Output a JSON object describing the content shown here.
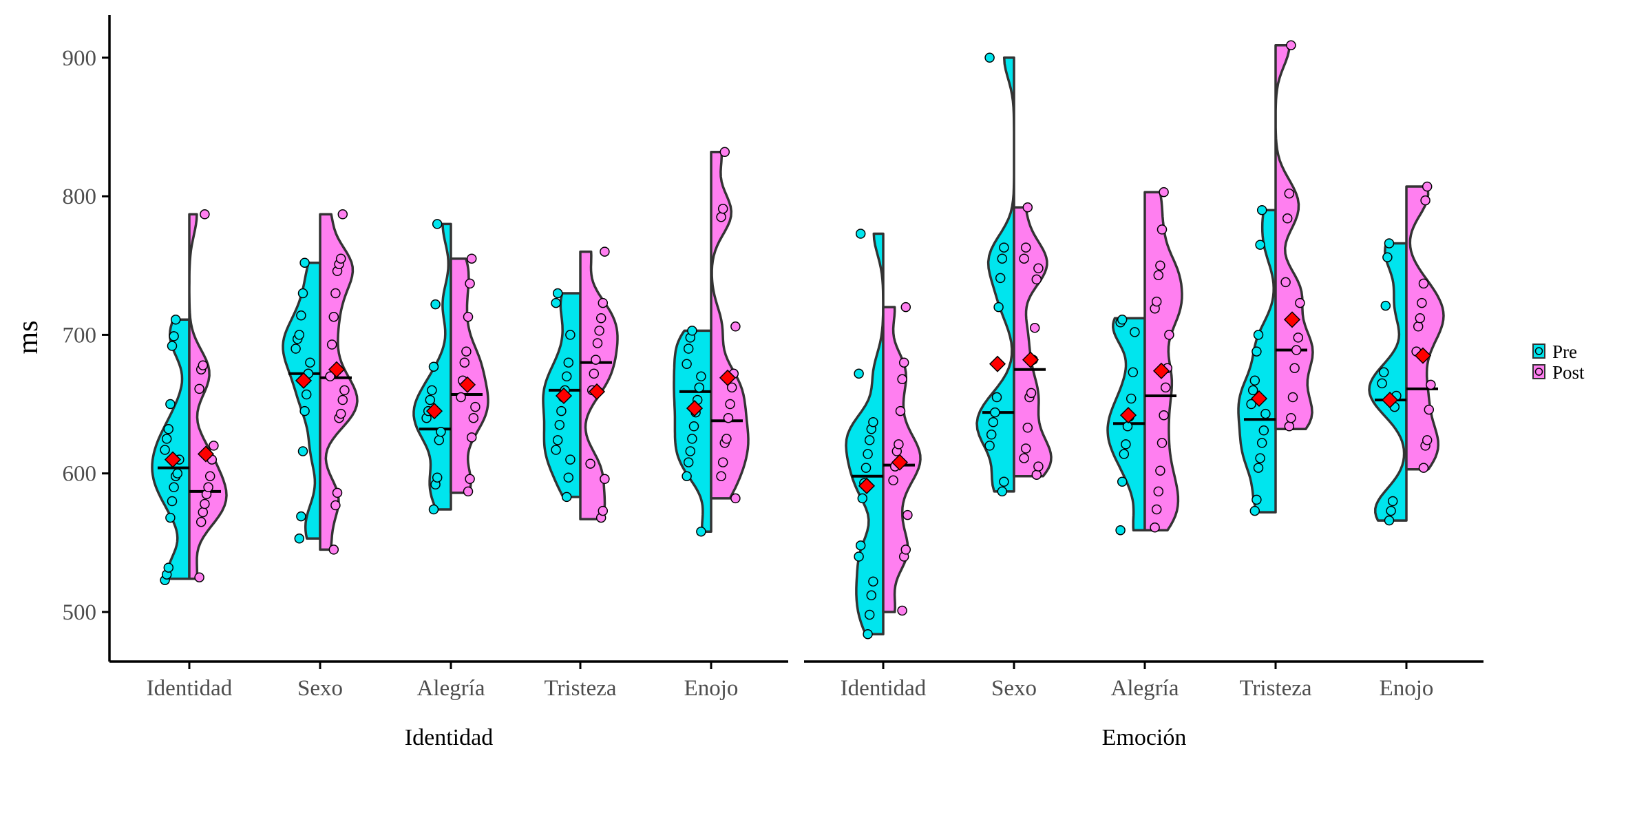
{
  "chart_data": {
    "type": "split-violin",
    "ylabel": "ms",
    "ylim": [
      460,
      935
    ],
    "yticks": [
      500,
      600,
      700,
      800,
      900
    ],
    "grid": false,
    "legend": {
      "position": "right",
      "entries": [
        {
          "name": "Pre",
          "color": "#00E5EE"
        },
        {
          "name": "Post",
          "color": "#FF7FF0"
        }
      ]
    },
    "colors": {
      "pre": "#00E5EE",
      "post": "#FF7FF0",
      "mean_marker": "#FF0000",
      "outline": "#333333"
    },
    "panels": [
      {
        "xlabel": "Identidad",
        "categories": [
          {
            "name": "Identidad",
            "pre": {
              "min": 524,
              "max": 711,
              "median": 604,
              "mean": 610,
              "points": [
                523,
                527,
                532,
                568,
                580,
                590,
                598,
                600,
                610,
                617,
                625,
                632,
                650,
                692,
                699,
                711
              ]
            },
            "post": {
              "min": 524,
              "max": 787,
              "median": 587,
              "mean": 614,
              "points": [
                525,
                565,
                572,
                578,
                585,
                590,
                598,
                610,
                620,
                661,
                675,
                678,
                787
              ]
            }
          },
          {
            "name": "Sexo",
            "pre": {
              "min": 553,
              "max": 752,
              "median": 672,
              "mean": 667,
              "points": [
                553,
                569,
                616,
                645,
                657,
                672,
                680,
                690,
                697,
                700,
                714,
                730,
                752
              ]
            },
            "post": {
              "min": 545,
              "max": 787,
              "median": 669,
              "mean": 675,
              "points": [
                545,
                577,
                586,
                640,
                643,
                653,
                660,
                670,
                693,
                713,
                730,
                746,
                751,
                755,
                787
              ]
            }
          },
          {
            "name": "Alegría",
            "pre": {
              "min": 574,
              "max": 780,
              "median": 632,
              "mean": 645,
              "points": [
                574,
                592,
                597,
                624,
                630,
                640,
                645,
                653,
                660,
                677,
                722,
                780
              ]
            },
            "post": {
              "min": 586,
              "max": 755,
              "median": 657,
              "mean": 664,
              "points": [
                587,
                596,
                626,
                640,
                648,
                655,
                667,
                680,
                688,
                713,
                737,
                755
              ]
            }
          },
          {
            "name": "Tristeza",
            "pre": {
              "min": 583,
              "max": 730,
              "median": 660,
              "mean": 656,
              "points": [
                583,
                597,
                610,
                617,
                624,
                635,
                645,
                655,
                660,
                670,
                680,
                700,
                723,
                730
              ]
            },
            "post": {
              "min": 567,
              "max": 760,
              "median": 680,
              "mean": 659,
              "points": [
                568,
                573,
                596,
                607,
                660,
                672,
                682,
                694,
                703,
                712,
                723,
                760
              ]
            }
          },
          {
            "name": "Enojo",
            "pre": {
              "min": 558,
              "max": 703,
              "median": 659,
              "mean": 647,
              "points": [
                558,
                598,
                608,
                616,
                625,
                634,
                644,
                653,
                662,
                670,
                679,
                690,
                698,
                703
              ]
            },
            "post": {
              "min": 582,
              "max": 832,
              "median": 638,
              "mean": 669,
              "points": [
                582,
                598,
                608,
                622,
                625,
                640,
                650,
                662,
                672,
                706,
                785,
                791,
                832
              ]
            }
          }
        ]
      },
      {
        "xlabel": "Emoción",
        "categories": [
          {
            "name": "Identidad",
            "pre": {
              "min": 484,
              "max": 773,
              "median": 598,
              "mean": 591,
              "points": [
                484,
                498,
                512,
                522,
                540,
                548,
                582,
                593,
                604,
                614,
                624,
                632,
                637,
                672,
                773
              ]
            },
            "post": {
              "min": 500,
              "max": 720,
              "median": 606,
              "mean": 608,
              "points": [
                501,
                540,
                545,
                570,
                595,
                605,
                616,
                621,
                645,
                668,
                680,
                720
              ]
            }
          },
          {
            "name": "Sexo",
            "pre": {
              "min": 587,
              "max": 900,
              "median": 644,
              "mean": 679,
              "points": [
                587,
                594,
                620,
                628,
                637,
                644,
                655,
                720,
                741,
                755,
                763,
                900
              ]
            },
            "post": {
              "min": 598,
              "max": 792,
              "median": 675,
              "mean": 682,
              "points": [
                599,
                605,
                611,
                618,
                633,
                655,
                658,
                682,
                705,
                740,
                748,
                755,
                763,
                792
              ]
            }
          },
          {
            "name": "Alegría",
            "pre": {
              "min": 559,
              "max": 712,
              "median": 636,
              "mean": 642,
              "points": [
                559,
                594,
                614,
                621,
                634,
                641,
                654,
                673,
                702,
                709,
                711
              ]
            },
            "post": {
              "min": 559,
              "max": 803,
              "median": 656,
              "mean": 674,
              "points": [
                561,
                574,
                587,
                602,
                622,
                642,
                662,
                676,
                700,
                719,
                724,
                743,
                750,
                776,
                803
              ]
            }
          },
          {
            "name": "Tristeza",
            "pre": {
              "min": 572,
              "max": 790,
              "median": 639,
              "mean": 654,
              "points": [
                573,
                581,
                604,
                611,
                622,
                631,
                643,
                650,
                660,
                667,
                688,
                700,
                765,
                790
              ]
            },
            "post": {
              "min": 632,
              "max": 909,
              "median": 689,
              "mean": 711,
              "points": [
                634,
                640,
                655,
                676,
                689,
                698,
                723,
                738,
                784,
                802,
                909
              ]
            }
          },
          {
            "name": "Enojo",
            "pre": {
              "min": 566,
              "max": 766,
              "median": 653,
              "mean": 653,
              "points": [
                566,
                573,
                580,
                648,
                656,
                665,
                673,
                721,
                756,
                766
              ]
            },
            "post": {
              "min": 603,
              "max": 807,
              "median": 661,
              "mean": 685,
              "points": [
                604,
                620,
                624,
                646,
                664,
                688,
                706,
                712,
                723,
                737,
                797,
                807
              ]
            }
          }
        ]
      }
    ]
  }
}
